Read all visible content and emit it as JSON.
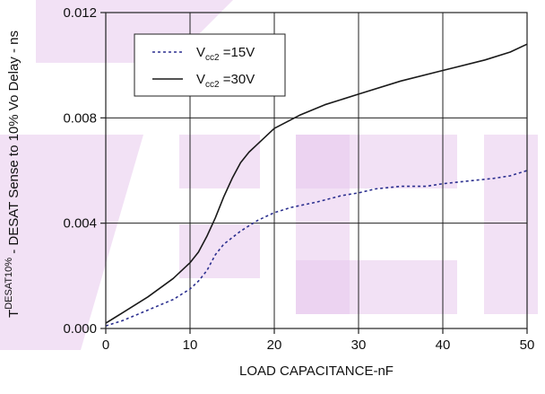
{
  "chart_data": {
    "type": "line",
    "xlabel": "LOAD CAPACITANCE-nF",
    "ylabel": {
      "prefix": "T",
      "superscript": "DESAT10%",
      "suffix": " - DESAT Sense to 10% Vo Delay - ns"
    },
    "xlim": [
      0,
      50
    ],
    "ylim": [
      0,
      0.012
    ],
    "x_ticks": [
      "0",
      "10",
      "20",
      "30",
      "40",
      "50"
    ],
    "y_ticks": [
      "0.000",
      "0.004",
      "0.008",
      "0.012"
    ],
    "grid": true,
    "legend_position": "top-left",
    "series": [
      {
        "legend_label": "V",
        "legend_sub": "cc2",
        "legend_suffix": " =15V",
        "style": "dashed",
        "color": "#2b2f8f",
        "x": [
          0,
          2,
          5,
          8,
          10,
          11,
          12,
          13,
          14,
          16,
          18,
          20,
          22,
          25,
          28,
          30,
          32,
          35,
          38,
          40,
          43,
          46,
          48,
          50
        ],
        "y": [
          0.0001,
          0.0003,
          0.0007,
          0.0011,
          0.0015,
          0.0018,
          0.0022,
          0.0028,
          0.0032,
          0.0037,
          0.0041,
          0.0044,
          0.0046,
          0.0048,
          0.00505,
          0.00515,
          0.0053,
          0.0054,
          0.0054,
          0.0055,
          0.0056,
          0.0057,
          0.0058,
          0.006
        ]
      },
      {
        "legend_label": "V",
        "legend_sub": "cc2",
        "legend_suffix": " =30V",
        "style": "solid",
        "color": "#1a1a1a",
        "x": [
          0,
          2,
          5,
          8,
          10,
          11,
          12,
          13,
          14,
          15,
          16,
          17,
          18,
          20,
          23,
          26,
          30,
          35,
          40,
          45,
          48,
          50
        ],
        "y": [
          0.0002,
          0.0006,
          0.0012,
          0.0019,
          0.0025,
          0.0029,
          0.0035,
          0.0042,
          0.005,
          0.0057,
          0.0063,
          0.0067,
          0.007,
          0.0076,
          0.0081,
          0.0085,
          0.0089,
          0.0094,
          0.0098,
          0.0102,
          0.0105,
          0.0108
        ]
      }
    ]
  },
  "colors": {
    "axis": "#222222",
    "grid": "#222222",
    "watermark": "#e8c8ec"
  }
}
